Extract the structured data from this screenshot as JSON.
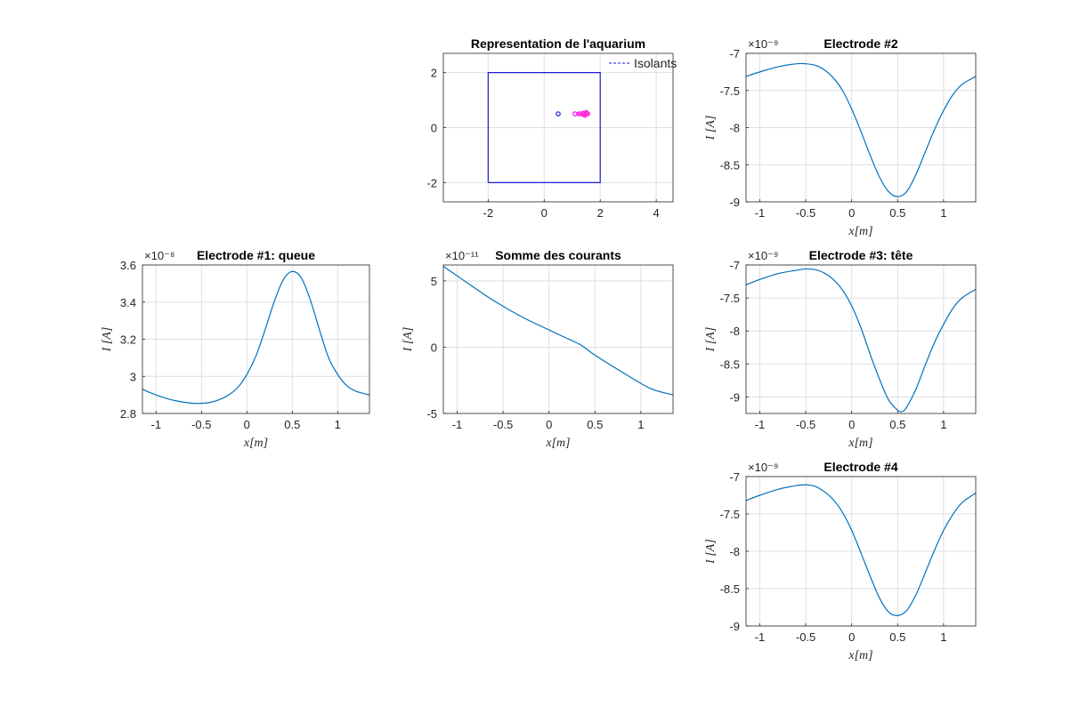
{
  "chart_data": [
    {
      "id": "aquarium",
      "type": "line",
      "title": "Representation de l'aquarium",
      "xlabel": "",
      "ylabel": "",
      "xlim": [
        -3.6,
        4.6
      ],
      "ylim": [
        -2.7,
        2.7
      ],
      "xticks": [
        -2,
        0,
        2,
        4
      ],
      "yticks": [
        -2,
        0,
        2
      ],
      "xtick_labels": [
        "-2",
        "0",
        "2",
        "4"
      ],
      "ytick_labels": [
        "-2",
        "0",
        "2"
      ],
      "grid": true,
      "legend": {
        "position": "top-right",
        "entries": [
          "Isolants"
        ]
      },
      "series": [
        {
          "name": "",
          "color": "#1a1ad6",
          "style": "solid",
          "x": [
            -2,
            2,
            2,
            -2,
            -2
          ],
          "y": [
            -2,
            -2,
            2,
            2,
            -2
          ]
        }
      ],
      "markers": [
        {
          "x": 0.5,
          "y": 0.5,
          "color": "#1a1ad6",
          "shape": "circle"
        },
        {
          "x": 1.1,
          "y": 0.5,
          "color": "#ff00ff",
          "shape": "circle"
        },
        {
          "x": 1.25,
          "y": 0.5,
          "color": "#ff00ff",
          "shape": "circle"
        },
        {
          "x": 1.4,
          "y": 0.52,
          "color": "#ff00ff",
          "shape": "circle"
        },
        {
          "x": 1.5,
          "y": 0.55,
          "color": "#ff00ff",
          "shape": "circle"
        },
        {
          "x": 1.45,
          "y": 0.45,
          "color": "#ff00ff",
          "shape": "circle"
        },
        {
          "x": 1.55,
          "y": 0.5,
          "color": "#ff00ff",
          "shape": "circle"
        }
      ],
      "legend_line_color": "#1a1ad6"
    },
    {
      "id": "electrode2",
      "type": "line",
      "title": "Electrode #2",
      "xlabel": "x[m]",
      "ylabel": "I [A]",
      "exponent": "×10⁻⁹",
      "xlim": [
        -1.15,
        1.35
      ],
      "ylim": [
        -9,
        -7
      ],
      "xticks": [
        -1,
        -0.5,
        0,
        0.5,
        1
      ],
      "xtick_labels": [
        "-1",
        "-0.5",
        "0",
        "0.5",
        "1"
      ],
      "yticks": [
        -9,
        -8.5,
        -8,
        -7.5,
        -7
      ],
      "ytick_labels": [
        "-9",
        "-8.5",
        "-8",
        "-7.5",
        "-7"
      ],
      "grid": true,
      "series": [
        {
          "name": "",
          "color": "#0072bd",
          "x": [
            -1.15,
            -1.0,
            -0.8,
            -0.6,
            -0.5,
            -0.4,
            -0.3,
            -0.2,
            -0.1,
            0.0,
            0.1,
            0.2,
            0.3,
            0.4,
            0.5,
            0.6,
            0.7,
            0.8,
            0.9,
            1.0,
            1.1,
            1.2,
            1.35
          ],
          "y": [
            -7.31,
            -7.25,
            -7.18,
            -7.14,
            -7.14,
            -7.16,
            -7.22,
            -7.33,
            -7.5,
            -7.75,
            -8.05,
            -8.37,
            -8.66,
            -8.86,
            -8.93,
            -8.86,
            -8.63,
            -8.33,
            -8.03,
            -7.77,
            -7.56,
            -7.42,
            -7.31
          ]
        }
      ]
    },
    {
      "id": "electrode1",
      "type": "line",
      "title": "Electrode #1: queue",
      "xlabel": "x[m]",
      "ylabel": "I [A]",
      "exponent": "×10⁻⁸",
      "xlim": [
        -1.15,
        1.35
      ],
      "ylim": [
        2.8,
        3.6
      ],
      "xticks": [
        -1,
        -0.5,
        0,
        0.5,
        1
      ],
      "xtick_labels": [
        "-1",
        "-0.5",
        "0",
        "0.5",
        "1"
      ],
      "yticks": [
        2.8,
        3.0,
        3.2,
        3.4,
        3.6
      ],
      "ytick_labels": [
        "2.8",
        "3",
        "3.2",
        "3.4",
        "3.6"
      ],
      "grid": true,
      "series": [
        {
          "name": "",
          "color": "#0072bd",
          "x": [
            -1.15,
            -1.0,
            -0.8,
            -0.6,
            -0.5,
            -0.4,
            -0.3,
            -0.2,
            -0.1,
            0.0,
            0.1,
            0.2,
            0.3,
            0.4,
            0.5,
            0.6,
            0.7,
            0.8,
            0.9,
            1.0,
            1.1,
            1.2,
            1.35
          ],
          "y": [
            2.93,
            2.9,
            2.87,
            2.855,
            2.855,
            2.86,
            2.875,
            2.9,
            2.94,
            3.01,
            3.11,
            3.25,
            3.4,
            3.52,
            3.565,
            3.53,
            3.41,
            3.25,
            3.1,
            3.01,
            2.95,
            2.92,
            2.9
          ]
        }
      ]
    },
    {
      "id": "somme",
      "type": "line",
      "title": "Somme des courants",
      "xlabel": "x[m]",
      "ylabel": "I [A]",
      "exponent": "×10⁻¹¹",
      "xlim": [
        -1.15,
        1.35
      ],
      "ylim": [
        -5,
        6.2
      ],
      "xticks": [
        -1,
        -0.5,
        0,
        0.5,
        1
      ],
      "xtick_labels": [
        "-1",
        "-0.5",
        "0",
        "0.5",
        "1"
      ],
      "yticks": [
        -5,
        0,
        5
      ],
      "ytick_labels": [
        "-5",
        "0",
        "5"
      ],
      "grid": true,
      "series": [
        {
          "name": "",
          "color": "#0072bd",
          "x": [
            -1.15,
            -0.9,
            -0.6,
            -0.3,
            0.0,
            0.2,
            0.35,
            0.5,
            0.8,
            1.1,
            1.35
          ],
          "y": [
            6.1,
            4.9,
            3.5,
            2.3,
            1.3,
            0.65,
            0.15,
            -0.6,
            -1.9,
            -3.1,
            -3.6
          ]
        }
      ]
    },
    {
      "id": "electrode3",
      "type": "line",
      "title": "Electrode #3: tête",
      "xlabel": "x[m]",
      "ylabel": "I [A]",
      "exponent": "×10⁻⁹",
      "xlim": [
        -1.15,
        1.35
      ],
      "ylim": [
        -9.25,
        -7
      ],
      "xticks": [
        -1,
        -0.5,
        0,
        0.5,
        1
      ],
      "xtick_labels": [
        "-1",
        "-0.5",
        "0",
        "0.5",
        "1"
      ],
      "yticks": [
        -9,
        -8.5,
        -8,
        -7.5,
        -7
      ],
      "ytick_labels": [
        "-9",
        "-8.5",
        "-8",
        "-7.5",
        "-7"
      ],
      "grid": true,
      "series": [
        {
          "name": "",
          "color": "#0072bd",
          "x": [
            -1.15,
            -1.0,
            -0.8,
            -0.6,
            -0.5,
            -0.4,
            -0.3,
            -0.2,
            -0.1,
            0.0,
            0.1,
            0.2,
            0.3,
            0.4,
            0.5,
            0.55,
            0.6,
            0.7,
            0.8,
            0.9,
            1.0,
            1.1,
            1.2,
            1.35
          ],
          "y": [
            -7.3,
            -7.22,
            -7.13,
            -7.08,
            -7.06,
            -7.07,
            -7.12,
            -7.22,
            -7.38,
            -7.62,
            -7.95,
            -8.35,
            -8.72,
            -9.04,
            -9.2,
            -9.22,
            -9.15,
            -8.88,
            -8.52,
            -8.18,
            -7.9,
            -7.66,
            -7.5,
            -7.37
          ]
        }
      ]
    },
    {
      "id": "electrode4",
      "type": "line",
      "title": "Electrode #4",
      "xlabel": "x[m]",
      "ylabel": "I [A]",
      "exponent": "×10⁻⁹",
      "xlim": [
        -1.15,
        1.35
      ],
      "ylim": [
        -9,
        -7
      ],
      "xticks": [
        -1,
        -0.5,
        0,
        0.5,
        1
      ],
      "xtick_labels": [
        "-1",
        "-0.5",
        "0",
        "0.5",
        "1"
      ],
      "yticks": [
        -9,
        -8.5,
        -8,
        -7.5,
        -7
      ],
      "ytick_labels": [
        "-9",
        "-8.5",
        "-8",
        "-7.5",
        "-7"
      ],
      "grid": true,
      "series": [
        {
          "name": "",
          "color": "#0072bd",
          "x": [
            -1.15,
            -1.0,
            -0.8,
            -0.6,
            -0.5,
            -0.4,
            -0.3,
            -0.2,
            -0.1,
            0.0,
            0.1,
            0.2,
            0.3,
            0.4,
            0.5,
            0.6,
            0.7,
            0.8,
            0.9,
            1.0,
            1.1,
            1.2,
            1.35
          ],
          "y": [
            -7.32,
            -7.25,
            -7.17,
            -7.12,
            -7.11,
            -7.13,
            -7.2,
            -7.31,
            -7.48,
            -7.72,
            -8.02,
            -8.33,
            -8.62,
            -8.81,
            -8.86,
            -8.79,
            -8.58,
            -8.29,
            -7.99,
            -7.72,
            -7.51,
            -7.35,
            -7.22
          ]
        }
      ]
    }
  ]
}
